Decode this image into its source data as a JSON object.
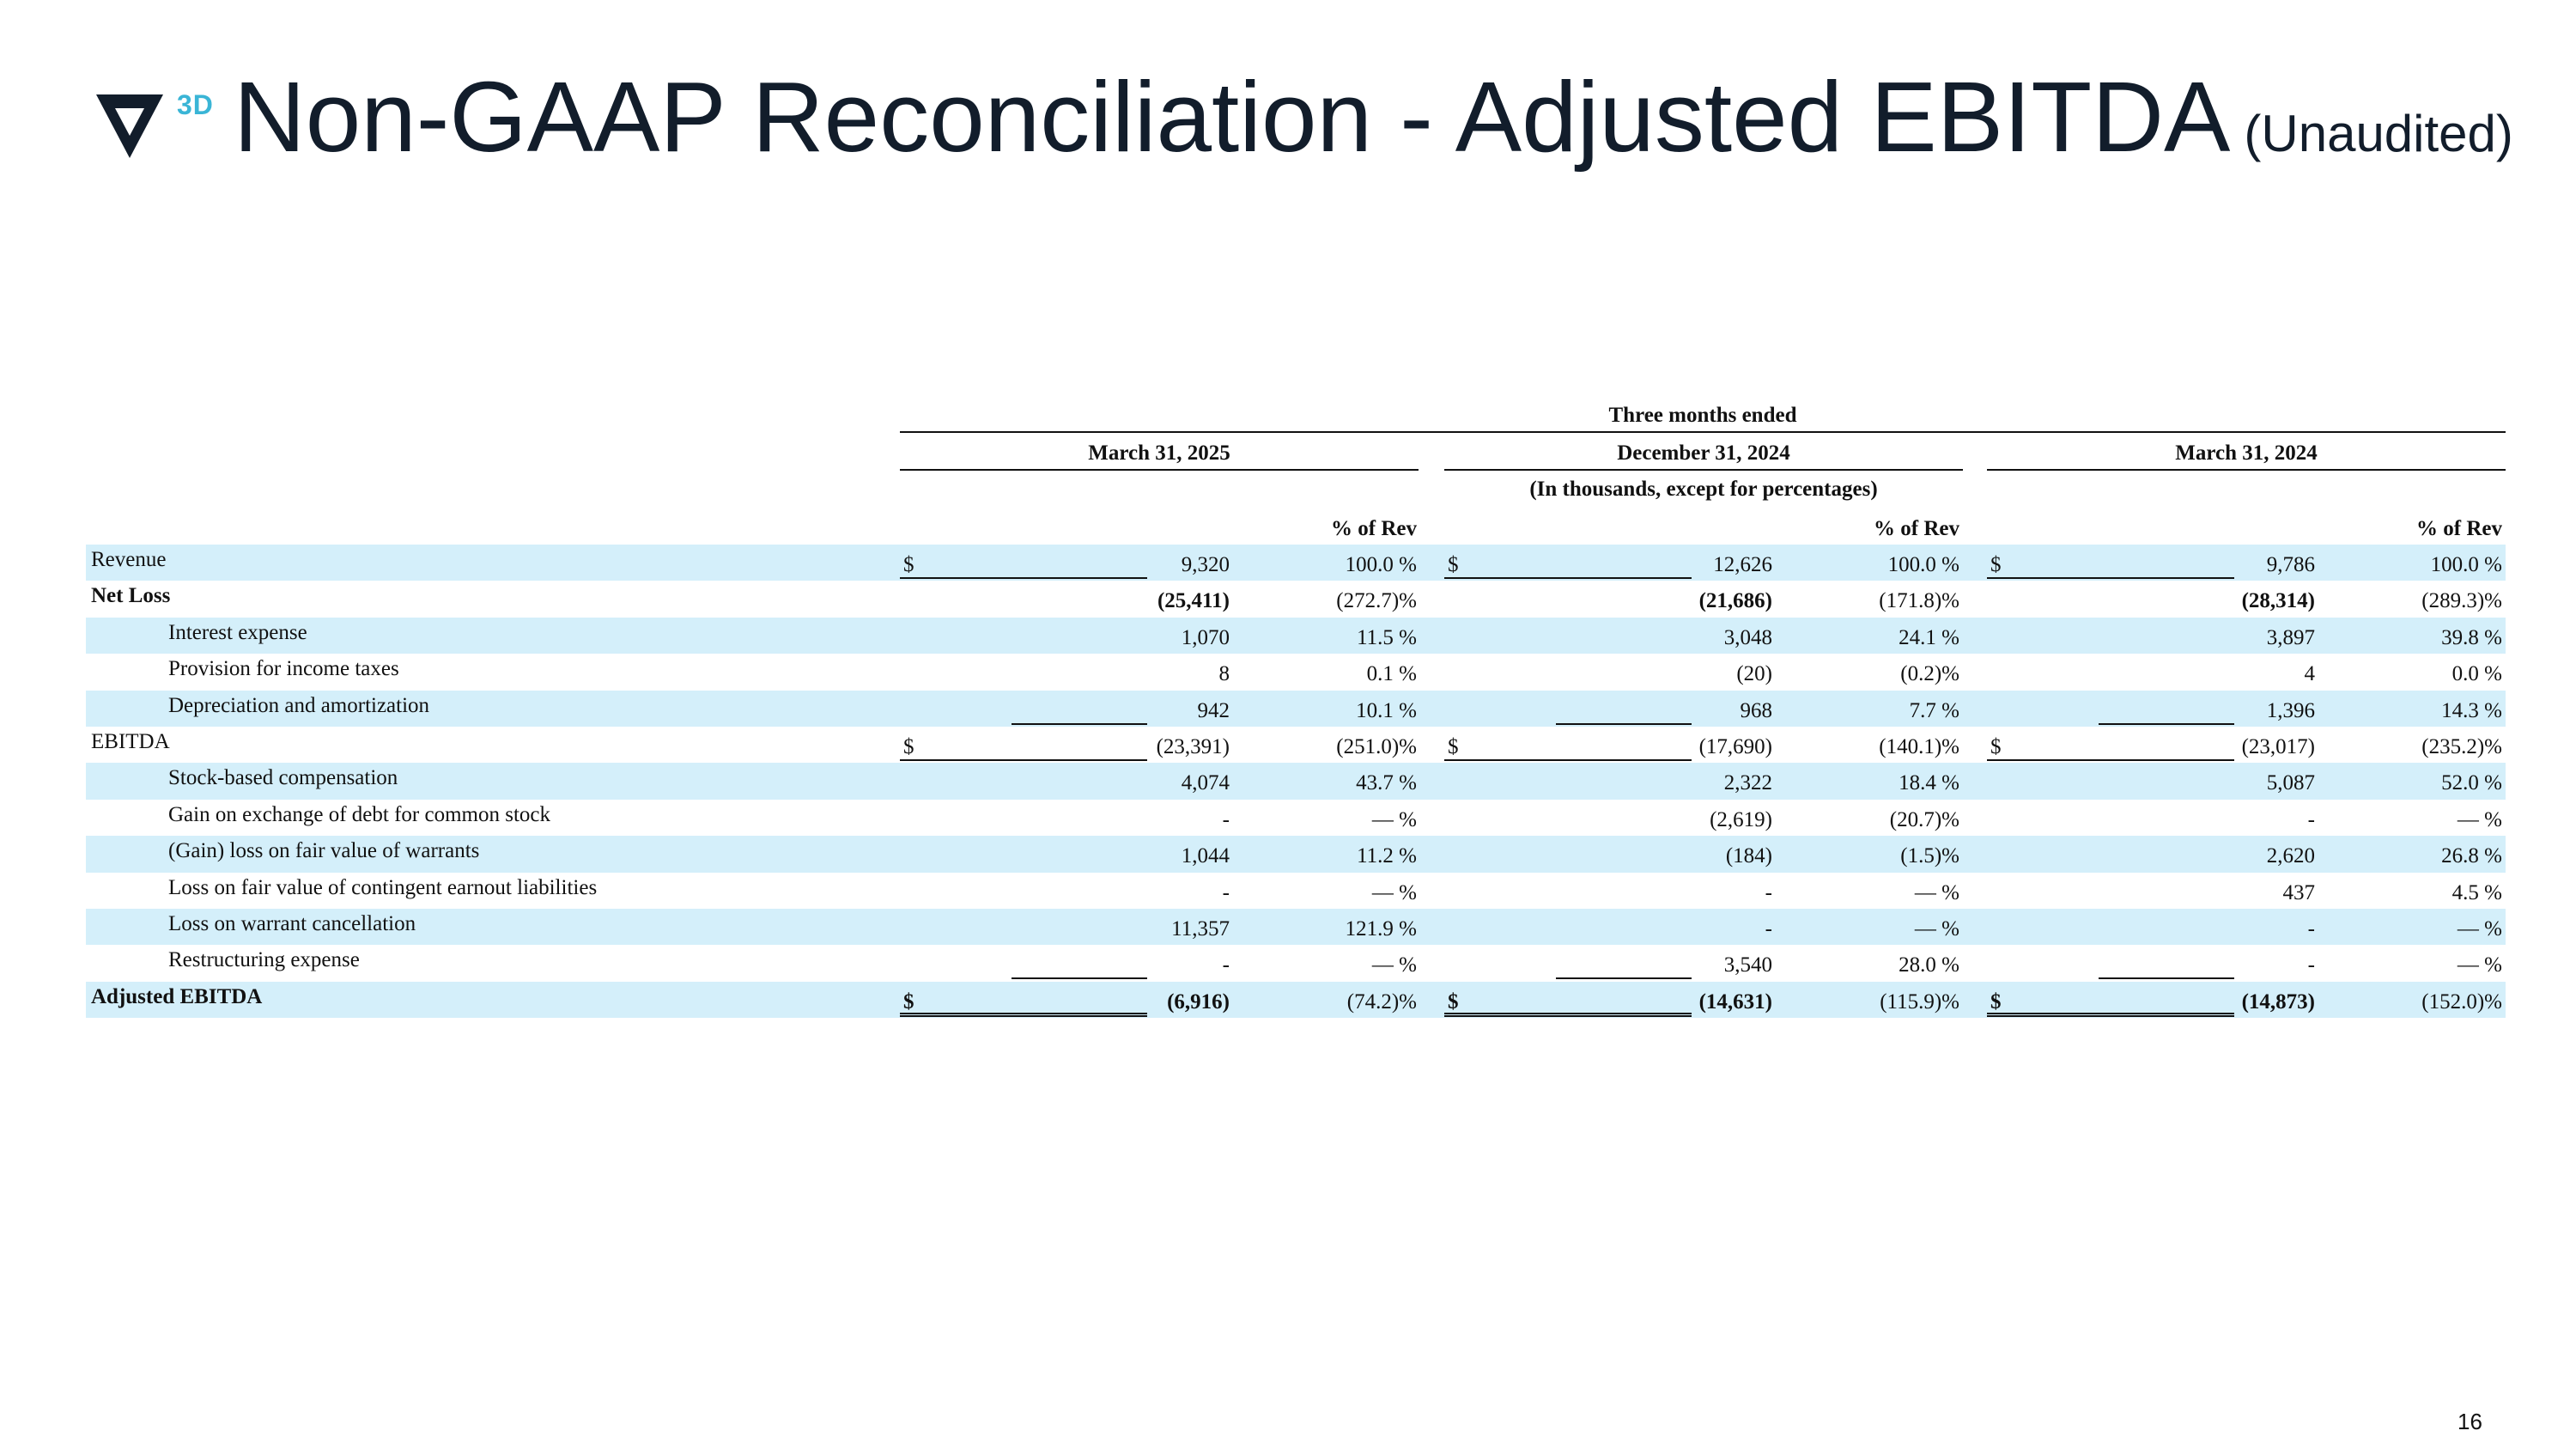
{
  "header": {
    "logo_mark": "3D",
    "title": "Non-GAAP Reconciliation - Adjusted EBITDA",
    "subtitle": "(Unaudited)",
    "page_number": "16"
  },
  "table": {
    "period_caption": "Three months ended",
    "columns": [
      "March 31, 2025",
      "December 31, 2024",
      "March 31, 2024"
    ],
    "units_note": "(In thousands, except for percentages)",
    "pct_header": "% of Rev",
    "rows": [
      {
        "label": "Revenue",
        "dollar": [
          "$",
          "$",
          "$"
        ],
        "values": [
          "9,320",
          "12,626",
          "9,786"
        ],
        "pcts": [
          "100.0 %",
          "100.0 %",
          "100.0 %"
        ]
      },
      {
        "label": "Net Loss",
        "dollar": [
          "",
          "",
          ""
        ],
        "values": [
          "(25,411)",
          "(21,686)",
          "(28,314)"
        ],
        "pcts": [
          "(272.7)%",
          "(171.8)%",
          "(289.3)%"
        ]
      },
      {
        "label": "Interest expense",
        "dollar": [
          "",
          "",
          ""
        ],
        "values": [
          "1,070",
          "3,048",
          "3,897"
        ],
        "pcts": [
          "11.5 %",
          "24.1 %",
          "39.8 %"
        ]
      },
      {
        "label": "Provision for income taxes",
        "dollar": [
          "",
          "",
          ""
        ],
        "values": [
          "8",
          "(20)",
          "4"
        ],
        "pcts": [
          "0.1 %",
          "(0.2)%",
          "0.0 %"
        ]
      },
      {
        "label": "Depreciation and amortization",
        "dollar": [
          "",
          "",
          ""
        ],
        "values": [
          "942",
          "968",
          "1,396"
        ],
        "pcts": [
          "10.1 %",
          "7.7 %",
          "14.3 %"
        ]
      },
      {
        "label": "EBITDA",
        "dollar": [
          "$",
          "$",
          "$"
        ],
        "values": [
          "(23,391)",
          "(17,690)",
          "(23,017)"
        ],
        "pcts": [
          "(251.0)%",
          "(140.1)%",
          "(235.2)%"
        ]
      },
      {
        "label": "Stock-based compensation",
        "dollar": [
          "",
          "",
          ""
        ],
        "values": [
          "4,074",
          "2,322",
          "5,087"
        ],
        "pcts": [
          "43.7 %",
          "18.4 %",
          "52.0 %"
        ]
      },
      {
        "label": "Gain on exchange of debt for common stock",
        "dollar": [
          "",
          "",
          ""
        ],
        "values": [
          "-",
          "(2,619)",
          "-"
        ],
        "pcts": [
          "— %",
          "(20.7)%",
          "— %"
        ]
      },
      {
        "label": "(Gain) loss on fair value of warrants",
        "dollar": [
          "",
          "",
          ""
        ],
        "values": [
          "1,044",
          "(184)",
          "2,620"
        ],
        "pcts": [
          "11.2 %",
          "(1.5)%",
          "26.8 %"
        ]
      },
      {
        "label": "Loss on fair value of contingent earnout liabilities",
        "dollar": [
          "",
          "",
          ""
        ],
        "values": [
          "-",
          "-",
          "437"
        ],
        "pcts": [
          "— %",
          "— %",
          "4.5 %"
        ]
      },
      {
        "label": "Loss on warrant cancellation",
        "dollar": [
          "",
          "",
          ""
        ],
        "values": [
          "11,357",
          "-",
          "-"
        ],
        "pcts": [
          "121.9 %",
          "— %",
          "— %"
        ]
      },
      {
        "label": "Restructuring expense",
        "dollar": [
          "",
          "",
          ""
        ],
        "values": [
          "-",
          "3,540",
          "-"
        ],
        "pcts": [
          "— %",
          "28.0 %",
          "— %"
        ]
      },
      {
        "label": "Adjusted EBITDA",
        "dollar": [
          "$",
          "$",
          "$"
        ],
        "values": [
          "(6,916)",
          "(14,631)",
          "(14,873)"
        ],
        "pcts": [
          "(74.2)%",
          "(115.9)%",
          "(152.0)%"
        ]
      }
    ]
  },
  "colors": {
    "title": "#121d2b",
    "accent": "#3ab5d6",
    "row_shade": "#d4effa"
  }
}
